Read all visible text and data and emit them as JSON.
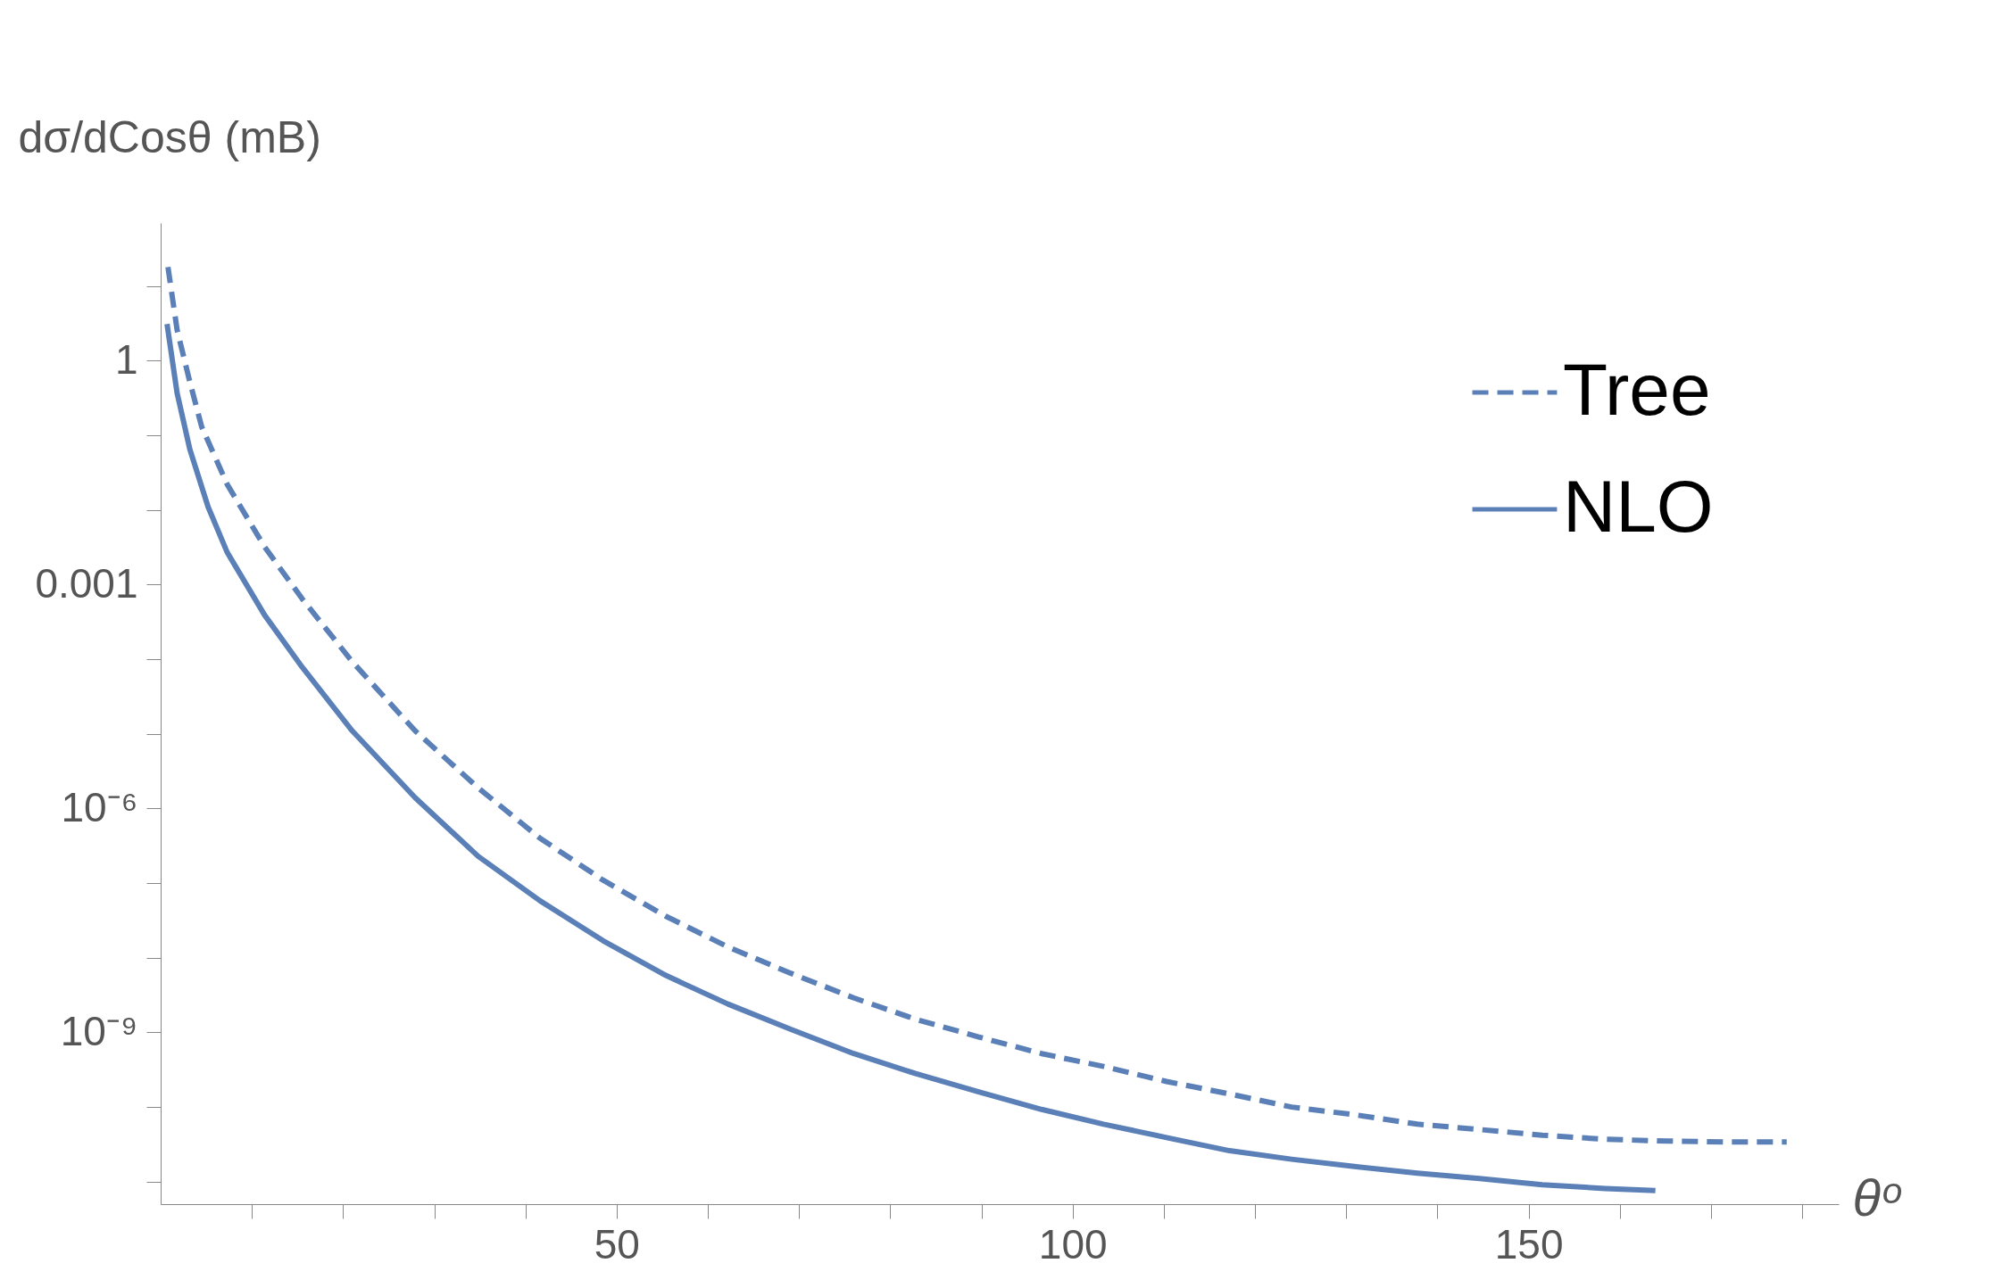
{
  "chart_data": {
    "type": "line",
    "xlabel": "θᵒ",
    "ylabel": "dσ/dCosθ (mB)",
    "log": "y",
    "grid": false,
    "legend": "top right",
    "xlim": [
      0,
      184
    ],
    "ylim": [
      5e-12,
      70
    ],
    "xticks": [
      {
        "value": 10,
        "label": null
      },
      {
        "value": 20,
        "label": null
      },
      {
        "value": 30,
        "label": null
      },
      {
        "value": 40,
        "label": null
      },
      50,
      {
        "value": 60,
        "label": null
      },
      {
        "value": 70,
        "label": null
      },
      {
        "value": 80,
        "label": null
      },
      {
        "value": 90,
        "label": null
      },
      100,
      {
        "value": 110,
        "label": null
      },
      {
        "value": 120,
        "label": null
      },
      {
        "value": 130,
        "label": null
      },
      {
        "value": 140,
        "label": null
      },
      150,
      {
        "value": 160,
        "label": null
      },
      {
        "value": 170,
        "label": null
      },
      {
        "value": 180,
        "label": null
      }
    ],
    "yticks": [
      {
        "value": 10,
        "label": null
      },
      1,
      {
        "value": 0.1,
        "label": null
      },
      {
        "value": 0.01,
        "label": null
      },
      0.001,
      {
        "value": 0.0001,
        "label": null
      },
      {
        "value": 1e-05,
        "label": null
      },
      {
        "value": 1e-06,
        "label": "10⁻⁶"
      },
      {
        "value": 1e-07,
        "label": null
      },
      {
        "value": 1e-08,
        "label": null
      },
      {
        "value": 1e-09,
        "label": "10⁻⁹"
      },
      {
        "value": 1e-10,
        "label": null
      },
      {
        "value": 1e-11,
        "label": null
      }
    ],
    "series": [
      {
        "name": "Tree",
        "color": "#5b80b8",
        "line_style": "dashed",
        "x": [
          0.8,
          1.8,
          3.2,
          4.5,
          7.3,
          11.4,
          15.5,
          21,
          27.9,
          34.8,
          41.6,
          48.5,
          55.4,
          62.2,
          69.1,
          76,
          82.8,
          89.7,
          96.6,
          103.4,
          110.3,
          117.2,
          124,
          130.9,
          137.8,
          144.6,
          151.5,
          158.4,
          165.3,
          172.1,
          178.3
        ],
        "values": [
          18,
          2.6,
          0.52,
          0.13,
          0.022,
          0.0032,
          0.00065,
          9.3e-05,
          1.1e-05,
          1.9e-06,
          4e-07,
          1.1e-07,
          3.6e-08,
          1.4e-08,
          6.2e-09,
          2.9e-09,
          1.5e-09,
          8.7e-10,
          5.2e-10,
          3.5e-10,
          2.2e-10,
          1.5e-10,
          1e-10,
          7.9e-11,
          5.9e-11,
          5e-11,
          4.2e-11,
          3.7e-11,
          3.5e-11,
          3.4e-11,
          3.4e-11
        ]
      },
      {
        "name": "NLO",
        "color": "#5b80b8",
        "line_style": "solid",
        "x": [
          0.7,
          1.8,
          3.2,
          5.2,
          7.3,
          11.4,
          15.5,
          21,
          27.9,
          34.8,
          41.6,
          48.5,
          55.4,
          62.2,
          69.1,
          76,
          82.8,
          89.7,
          96.6,
          103.4,
          110.3,
          117.2,
          124,
          130.9,
          137.8,
          144.6,
          151.5,
          158.4,
          163.9
        ],
        "values": [
          3.1,
          0.37,
          0.065,
          0.011,
          0.0027,
          0.00039,
          7.9e-05,
          1.1e-05,
          1.4e-06,
          2.3e-07,
          5.8e-08,
          1.7e-08,
          5.8e-09,
          2.4e-09,
          1.1e-09,
          5.2e-10,
          2.8e-10,
          1.6e-10,
          9.3e-11,
          5.9e-11,
          3.9e-11,
          2.6e-11,
          2e-11,
          1.6e-11,
          1.3e-11,
          1.1e-11,
          9.1e-12,
          8.1e-12,
          7.6e-12
        ]
      }
    ]
  }
}
